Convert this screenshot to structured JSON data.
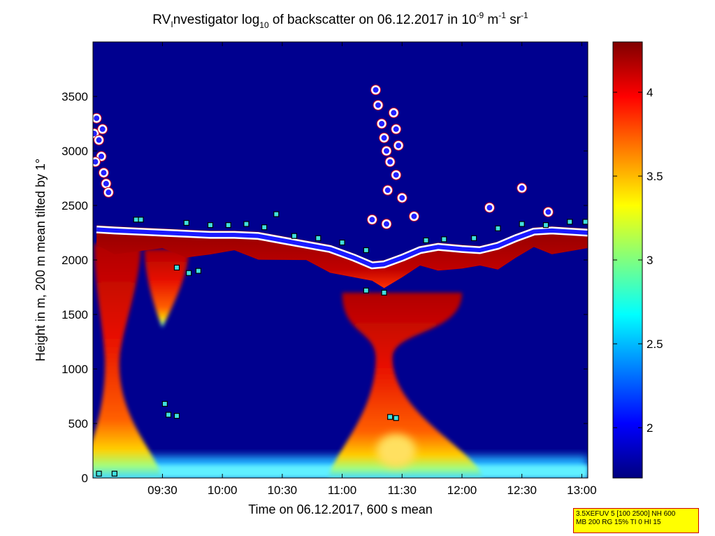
{
  "chart_data": {
    "type": "heatmap",
    "title": {
      "prefix": "RV",
      "sub_i": "I",
      "rest1": "nvestigator log",
      "sub_10": "10",
      "rest2": " of backscatter on 06.12.2017 in 10",
      "sup_neg9": "-9",
      "unit_m": " m",
      "sup_neg1a": "-1",
      "unit_sr": " sr",
      "sup_neg1b": "-1"
    },
    "xlabel": "Time on 06.12.2017, 600 s mean",
    "ylabel": "Height in m, 200 m mean tilted by 1°",
    "x_range_hours": [
      8.92,
      13.05
    ],
    "y_range_m": [
      0,
      4000
    ],
    "x_ticks": [
      {
        "value": 9.5,
        "label": "09:30"
      },
      {
        "value": 10.0,
        "label": "10:00"
      },
      {
        "value": 10.5,
        "label": "10:30"
      },
      {
        "value": 11.0,
        "label": "11:00"
      },
      {
        "value": 11.5,
        "label": "11:30"
      },
      {
        "value": 12.0,
        "label": "12:00"
      },
      {
        "value": 12.5,
        "label": "12:30"
      },
      {
        "value": 13.0,
        "label": "13:00"
      }
    ],
    "y_ticks": [
      {
        "value": 0,
        "label": "0"
      },
      {
        "value": 500,
        "label": "500"
      },
      {
        "value": 1000,
        "label": "1000"
      },
      {
        "value": 1500,
        "label": "1500"
      },
      {
        "value": 2000,
        "label": "2000"
      },
      {
        "value": 2500,
        "label": "2500"
      },
      {
        "value": 3000,
        "label": "3000"
      },
      {
        "value": 3500,
        "label": "3500"
      }
    ],
    "colorbar": {
      "range": [
        1.7,
        4.3
      ],
      "colormap": "jet",
      "ticks": [
        {
          "value": 2.0,
          "label": "2"
        },
        {
          "value": 2.5,
          "label": "2.5"
        },
        {
          "value": 3.0,
          "label": "3"
        },
        {
          "value": 3.5,
          "label": "3.5"
        },
        {
          "value": 4.0,
          "label": "4"
        }
      ]
    },
    "background_color": "#00008f",
    "features": {
      "cloud_base_m": [
        [
          8.95,
          2280
        ],
        [
          9.1,
          2270
        ],
        [
          9.3,
          2260
        ],
        [
          9.5,
          2250
        ],
        [
          9.7,
          2240
        ],
        [
          9.9,
          2230
        ],
        [
          10.1,
          2230
        ],
        [
          10.3,
          2220
        ],
        [
          10.5,
          2180
        ],
        [
          10.7,
          2140
        ],
        [
          10.9,
          2100
        ],
        [
          11.1,
          2020
        ],
        [
          11.25,
          1950
        ],
        [
          11.35,
          1960
        ],
        [
          11.5,
          2020
        ],
        [
          11.65,
          2090
        ],
        [
          11.8,
          2120
        ],
        [
          12.0,
          2100
        ],
        [
          12.15,
          2090
        ],
        [
          12.3,
          2130
        ],
        [
          12.45,
          2200
        ],
        [
          12.6,
          2260
        ],
        [
          12.75,
          2270
        ],
        [
          12.9,
          2260
        ],
        [
          13.05,
          2250
        ]
      ],
      "aerosol_plumes": [
        {
          "x_hours": [
            8.93,
            9.02,
            9.14,
            9.32
          ],
          "top_m": 2150,
          "neck_m": 1050
        },
        {
          "x_hours": [
            9.35,
            9.45,
            9.55,
            9.72
          ],
          "top_m": 2100,
          "neck_m": 1380
        },
        {
          "x_hours": [
            11.0,
            11.28,
            11.42,
            12.0
          ],
          "top_m": 1700,
          "neck_m": 1100
        }
      ],
      "high_cloud_circles": [
        [
          8.93,
          3160
        ],
        [
          8.95,
          3300
        ],
        [
          8.97,
          3100
        ],
        [
          8.99,
          2950
        ],
        [
          9.01,
          2800
        ],
        [
          9.03,
          2700
        ],
        [
          9.05,
          2620
        ],
        [
          8.94,
          2900
        ],
        [
          9.0,
          3200
        ],
        [
          11.28,
          3560
        ],
        [
          11.3,
          3420
        ],
        [
          11.33,
          3250
        ],
        [
          11.35,
          3120
        ],
        [
          11.37,
          3000
        ],
        [
          11.4,
          2900
        ],
        [
          11.43,
          3350
        ],
        [
          11.45,
          3200
        ],
        [
          11.47,
          3050
        ],
        [
          11.45,
          2780
        ],
        [
          11.38,
          2640
        ],
        [
          11.5,
          2570
        ],
        [
          12.5,
          2660
        ],
        [
          11.25,
          2370
        ],
        [
          11.37,
          2330
        ],
        [
          11.6,
          2400
        ],
        [
          12.23,
          2480
        ],
        [
          12.72,
          2440
        ]
      ],
      "squares_m": [
        [
          9.28,
          2370
        ],
        [
          9.32,
          2370
        ],
        [
          9.7,
          2340
        ],
        [
          9.9,
          2320
        ],
        [
          10.05,
          2320
        ],
        [
          10.2,
          2330
        ],
        [
          10.35,
          2300
        ],
        [
          10.45,
          2420
        ],
        [
          10.6,
          2220
        ],
        [
          10.8,
          2200
        ],
        [
          11.0,
          2160
        ],
        [
          11.2,
          2090
        ],
        [
          11.7,
          2180
        ],
        [
          11.85,
          2190
        ],
        [
          12.1,
          2200
        ],
        [
          12.3,
          2290
        ],
        [
          12.5,
          2330
        ],
        [
          12.7,
          2320
        ],
        [
          12.9,
          2350
        ],
        [
          13.03,
          2350
        ],
        [
          9.62,
          1930
        ],
        [
          9.72,
          1880
        ],
        [
          9.8,
          1900
        ],
        [
          11.2,
          1720
        ],
        [
          11.35,
          1700
        ],
        [
          9.55,
          580
        ],
        [
          9.52,
          680
        ],
        [
          9.62,
          570
        ],
        [
          11.4,
          560
        ],
        [
          11.45,
          550
        ],
        [
          8.97,
          40
        ],
        [
          9.1,
          40
        ]
      ]
    }
  },
  "info_box": {
    "line1": "3.5XEFUV 5 [100 2500] NH 600",
    "line2": "MB 200 RG 15% TI 0 HI 15"
  }
}
